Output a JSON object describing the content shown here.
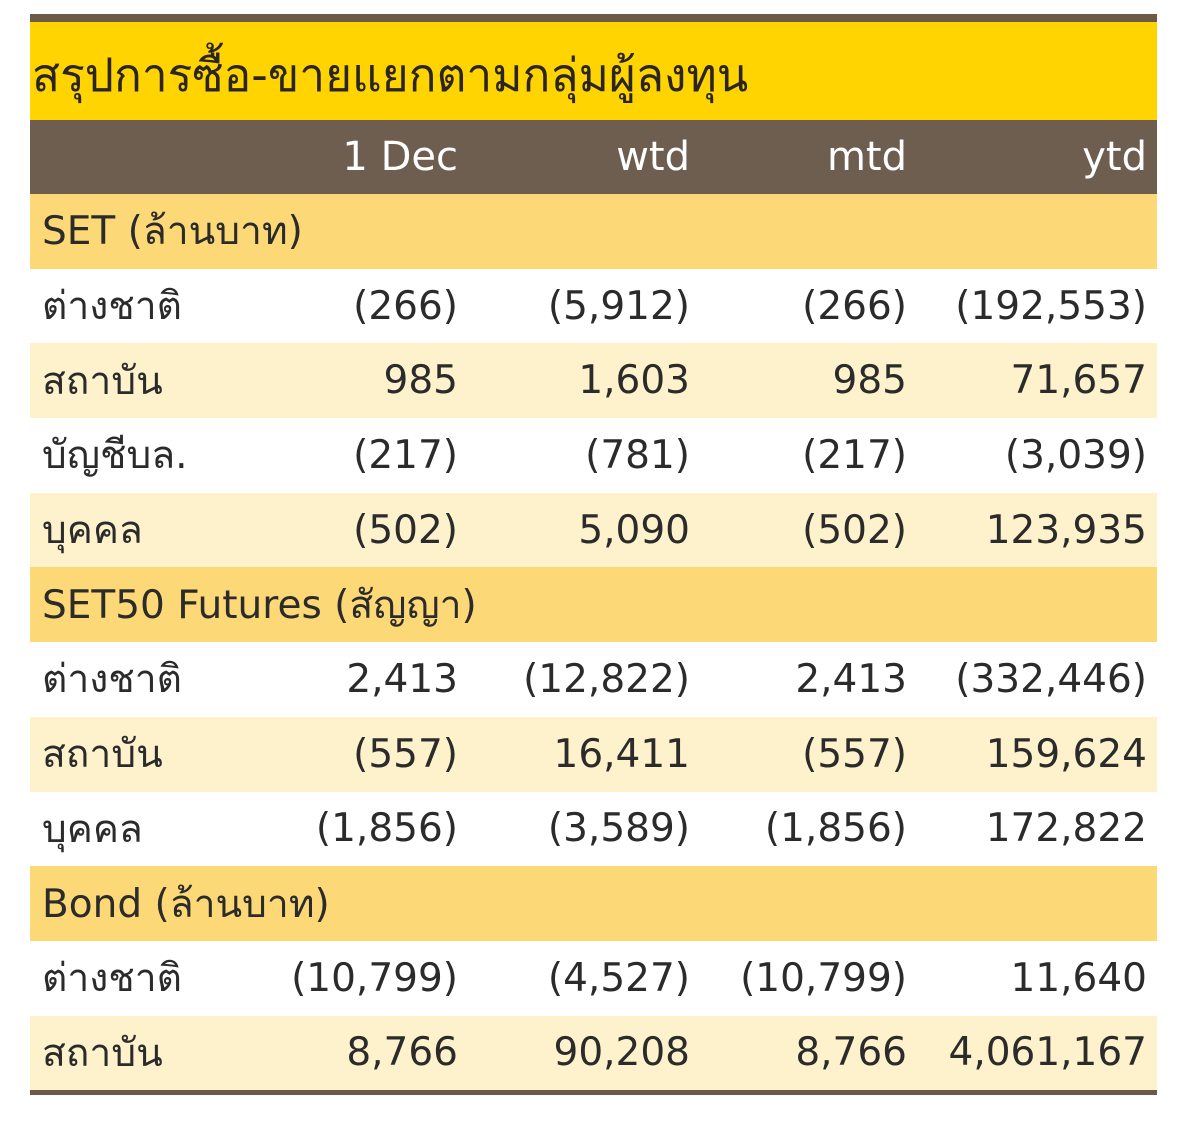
{
  "title": "สรุปการซื้อ-ขายแยกตามกลุ่มผู้ลงทุน",
  "columns": [
    "1 Dec",
    "wtd",
    "mtd",
    "ytd"
  ],
  "sections": [
    {
      "label": "SET (ล้านบาท)",
      "rows": [
        {
          "label": "ต่างชาติ",
          "values": [
            "(266)",
            "(5,912)",
            "(266)",
            "(192,553)"
          ]
        },
        {
          "label": "สถาบัน",
          "values": [
            "985",
            "1,603",
            "985",
            "71,657"
          ]
        },
        {
          "label": "บัญชีบล.",
          "values": [
            "(217)",
            "(781)",
            "(217)",
            "(3,039)"
          ]
        },
        {
          "label": "บุคคล",
          "values": [
            "(502)",
            "5,090",
            "(502)",
            "123,935"
          ]
        }
      ]
    },
    {
      "label": "SET50 Futures (สัญญา)",
      "rows": [
        {
          "label": "ต่างชาติ",
          "values": [
            "2,413",
            "(12,822)",
            "2,413",
            "(332,446)"
          ]
        },
        {
          "label": "สถาบัน",
          "values": [
            "(557)",
            "16,411",
            "(557)",
            "159,624"
          ]
        },
        {
          "label": "บุคคล",
          "values": [
            "(1,856)",
            "(3,589)",
            "(1,856)",
            "172,822"
          ]
        }
      ]
    },
    {
      "label": "Bond (ล้านบาท)",
      "rows": [
        {
          "label": "ต่างชาติ",
          "values": [
            "(10,799)",
            "(4,527)",
            "(10,799)",
            "11,640"
          ]
        },
        {
          "label": "สถาบัน",
          "values": [
            "8,766",
            "90,208",
            "8,766",
            "4,061,167"
          ]
        }
      ]
    }
  ],
  "colors": {
    "title_bg": "#ffd400",
    "header_bg": "#6e5e50",
    "section_bg": "#fcd976",
    "shaded_row_bg": "#fef2cc",
    "rule": "#6b5a4a"
  }
}
